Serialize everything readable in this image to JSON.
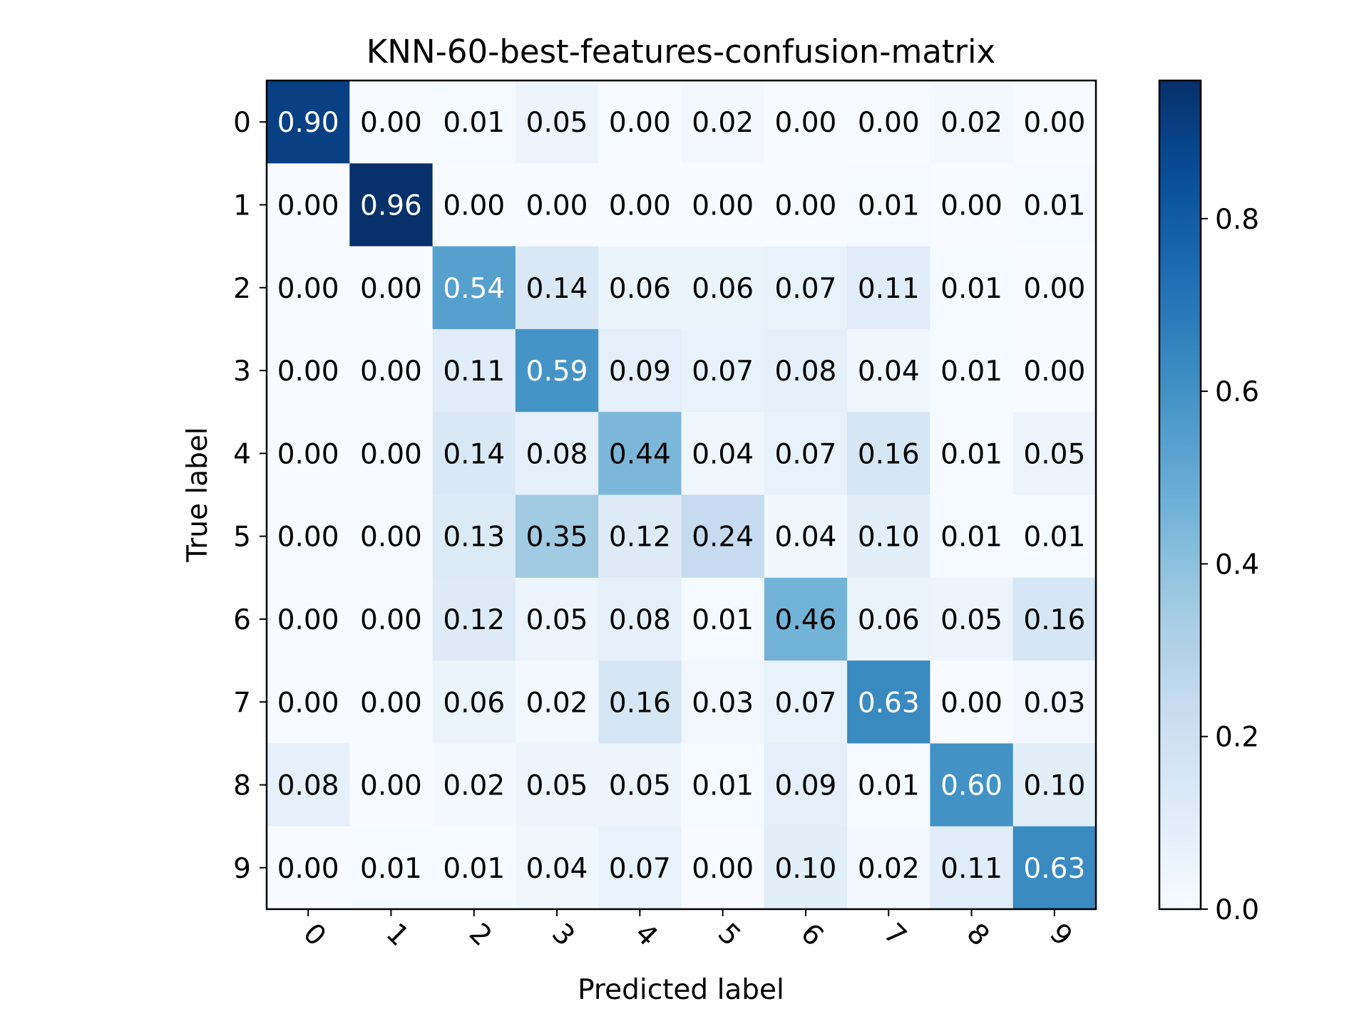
{
  "chart_data": {
    "type": "heatmap",
    "title": "KNN-60-best-features-confusion-matrix",
    "xlabel": "Predicted label",
    "ylabel": "True label",
    "x_ticks": [
      "0",
      "1",
      "2",
      "3",
      "4",
      "5",
      "6",
      "7",
      "8",
      "9"
    ],
    "y_ticks": [
      "0",
      "1",
      "2",
      "3",
      "4",
      "5",
      "6",
      "7",
      "8",
      "9"
    ],
    "values": [
      [
        "0.90",
        "0.00",
        "0.01",
        "0.05",
        "0.00",
        "0.02",
        "0.00",
        "0.00",
        "0.02",
        "0.00"
      ],
      [
        "0.00",
        "0.96",
        "0.00",
        "0.00",
        "0.00",
        "0.00",
        "0.00",
        "0.01",
        "0.00",
        "0.01"
      ],
      [
        "0.00",
        "0.00",
        "0.54",
        "0.14",
        "0.06",
        "0.06",
        "0.07",
        "0.11",
        "0.01",
        "0.00"
      ],
      [
        "0.00",
        "0.00",
        "0.11",
        "0.59",
        "0.09",
        "0.07",
        "0.08",
        "0.04",
        "0.01",
        "0.00"
      ],
      [
        "0.00",
        "0.00",
        "0.14",
        "0.08",
        "0.44",
        "0.04",
        "0.07",
        "0.16",
        "0.01",
        "0.05"
      ],
      [
        "0.00",
        "0.00",
        "0.13",
        "0.35",
        "0.12",
        "0.24",
        "0.04",
        "0.10",
        "0.01",
        "0.01"
      ],
      [
        "0.00",
        "0.00",
        "0.12",
        "0.05",
        "0.08",
        "0.01",
        "0.46",
        "0.06",
        "0.05",
        "0.16"
      ],
      [
        "0.00",
        "0.00",
        "0.06",
        "0.02",
        "0.16",
        "0.03",
        "0.07",
        "0.63",
        "0.00",
        "0.03"
      ],
      [
        "0.08",
        "0.00",
        "0.02",
        "0.05",
        "0.05",
        "0.01",
        "0.09",
        "0.01",
        "0.60",
        "0.10"
      ],
      [
        "0.00",
        "0.01",
        "0.01",
        "0.04",
        "0.07",
        "0.00",
        "0.10",
        "0.02",
        "0.11",
        "0.63"
      ]
    ],
    "colormap": "Blues",
    "color_range": [
      0,
      0.96
    ],
    "colorbar_ticks": [
      "0.0",
      "0.2",
      "0.4",
      "0.6",
      "0.8"
    ],
    "x_tick_rotation": 45,
    "grid": false
  }
}
